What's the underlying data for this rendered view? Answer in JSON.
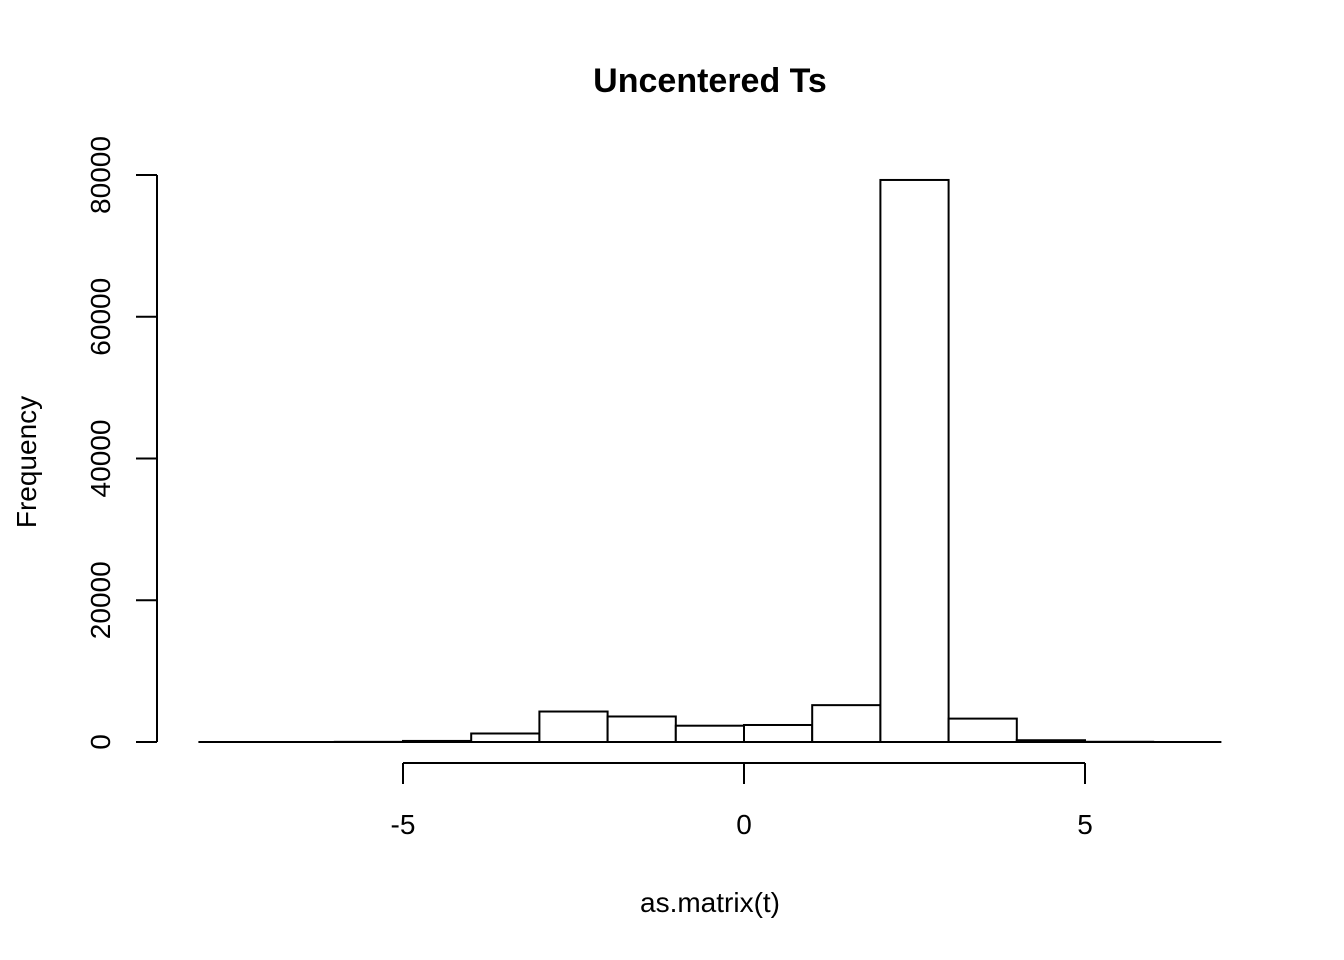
{
  "chart_data": {
    "type": "bar",
    "title": "Uncentered Ts",
    "xlabel": "as.matrix(t)",
    "ylabel": "Frequency",
    "bins": [
      {
        "from": -8,
        "to": -7,
        "value": 0
      },
      {
        "from": -7,
        "to": -6,
        "value": 0
      },
      {
        "from": -6,
        "to": -5,
        "value": 20
      },
      {
        "from": -5,
        "to": -4,
        "value": 150
      },
      {
        "from": -4,
        "to": -3,
        "value": 1200
      },
      {
        "from": -3,
        "to": -2,
        "value": 4300
      },
      {
        "from": -2,
        "to": -1,
        "value": 3600
      },
      {
        "from": -1,
        "to": 0,
        "value": 2300
      },
      {
        "from": 0,
        "to": 1,
        "value": 2400
      },
      {
        "from": 1,
        "to": 2,
        "value": 5200
      },
      {
        "from": 2,
        "to": 3,
        "value": 79300
      },
      {
        "from": 3,
        "to": 4,
        "value": 3300
      },
      {
        "from": 4,
        "to": 5,
        "value": 250
      },
      {
        "from": 5,
        "to": 6,
        "value": 30
      },
      {
        "from": 6,
        "to": 7,
        "value": 0
      }
    ],
    "xlim": [
      -8,
      7
    ],
    "ylim": [
      0,
      80000
    ],
    "x_ticks": [
      -5,
      0,
      5
    ],
    "y_ticks": [
      0,
      20000,
      40000,
      60000,
      80000
    ],
    "x_tick_labels": [
      "-5",
      "0",
      "5"
    ],
    "y_tick_labels": [
      "0",
      "20000",
      "40000",
      "60000",
      "80000"
    ],
    "grid": false,
    "colors": {
      "bar_fill": "#ffffff",
      "bar_stroke": "#000000"
    }
  }
}
